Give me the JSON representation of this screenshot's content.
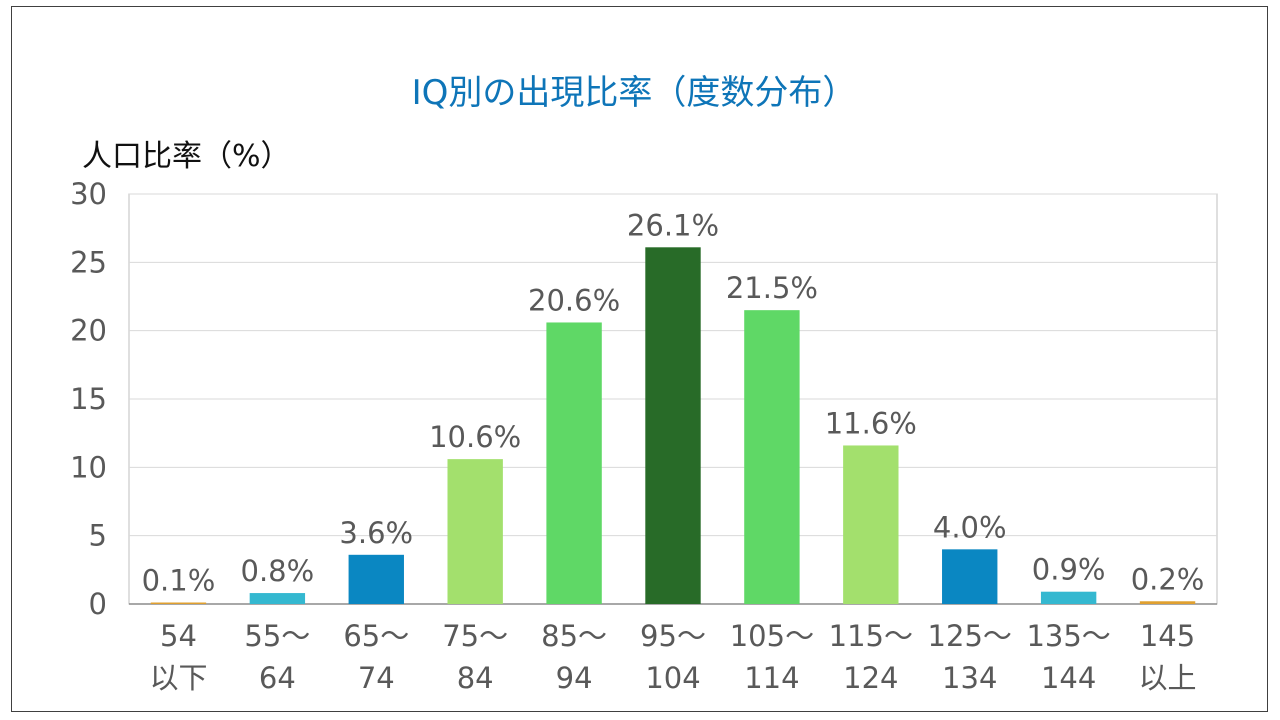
{
  "chart_data": {
    "type": "bar",
    "title": "IQ別の出現比率（度数分布）",
    "ylabel": "人口比率（%）",
    "xlabel": "",
    "ylim": [
      0,
      30
    ],
    "yticks": [
      "0",
      "5",
      "10",
      "15",
      "20",
      "25",
      "30"
    ],
    "grid": true,
    "categories": [
      [
        "54",
        "以下"
      ],
      [
        "55～",
        "64"
      ],
      [
        "65～",
        "74"
      ],
      [
        "75～",
        "84"
      ],
      [
        "85～",
        "94"
      ],
      [
        "95～",
        "104"
      ],
      [
        "105～",
        "114"
      ],
      [
        "115～",
        "124"
      ],
      [
        "125～",
        "134"
      ],
      [
        "135～",
        "144"
      ],
      [
        "145",
        "以上"
      ]
    ],
    "values": [
      0.1,
      0.8,
      3.6,
      10.6,
      20.6,
      26.1,
      21.5,
      11.6,
      4.0,
      0.9,
      0.2
    ],
    "data_labels": [
      "0.1%",
      "0.8%",
      "3.6%",
      "10.6%",
      "20.6%",
      "26.1%",
      "21.5%",
      "11.6%",
      "4.0%",
      "0.9%",
      "0.2%"
    ],
    "colors": [
      "#E0A030",
      "#34B8D0",
      "#0A87C2",
      "#A3E06D",
      "#5FD866",
      "#286B28",
      "#5FD866",
      "#A3E06D",
      "#0A87C2",
      "#34B8D0",
      "#E0A030"
    ]
  }
}
